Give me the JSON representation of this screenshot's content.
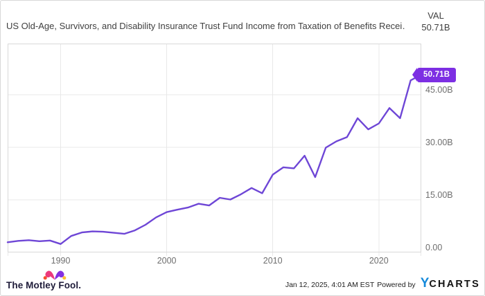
{
  "header": {
    "title": "US Old-Age, Survivors, and Disability Insurance Trust Fund Income from Taxation of Benefits Recei…",
    "val_label": "VAL",
    "val_value": "50.71B"
  },
  "chart_data": {
    "type": "line",
    "title": "US Old-Age, Survivors, and Disability Insurance Trust Fund Income from Taxation of Benefits Received",
    "units": "USD billions",
    "x": [
      1985,
      1986,
      1987,
      1988,
      1989,
      1990,
      1991,
      1992,
      1993,
      1994,
      1995,
      1996,
      1997,
      1998,
      1999,
      2000,
      2001,
      2002,
      2003,
      2004,
      2005,
      2006,
      2007,
      2008,
      2009,
      2010,
      2011,
      2012,
      2013,
      2014,
      2015,
      2016,
      2017,
      2018,
      2019,
      2020,
      2021,
      2022,
      2023,
      2024
    ],
    "values": [
      2.9,
      3.3,
      3.5,
      3.2,
      3.4,
      2.4,
      4.7,
      5.7,
      6.0,
      5.9,
      5.6,
      5.3,
      6.3,
      7.9,
      10.0,
      11.5,
      12.2,
      12.8,
      13.9,
      13.4,
      15.6,
      15.1,
      16.6,
      18.4,
      16.9,
      22.2,
      24.3,
      24.0,
      27.6,
      21.5,
      29.9,
      31.7,
      32.9,
      38.3,
      35.1,
      36.8,
      41.2,
      38.3,
      49.1,
      50.71
    ],
    "x_ticks": [
      {
        "value": 1990,
        "label": "1990"
      },
      {
        "value": 2000,
        "label": "2000"
      },
      {
        "value": 2010,
        "label": "2010"
      },
      {
        "value": 2020,
        "label": "2020"
      }
    ],
    "y_ticks": [
      {
        "value": 0,
        "label": "0.00"
      },
      {
        "value": 15,
        "label": "15.00B"
      },
      {
        "value": 30,
        "label": "30.00B"
      },
      {
        "value": 45,
        "label": "45.00B"
      }
    ],
    "xlim": [
      1985,
      2024
    ],
    "ylim": [
      0,
      59.6
    ],
    "grid": true,
    "legend": "none",
    "line_color": "#6e46d6",
    "end_label": {
      "text": "50.71B",
      "value": 50.71,
      "bg": "#7d2fe3"
    }
  },
  "footer": {
    "brand": "The Motley Fool.",
    "timestamp": "Jan 12, 2025, 4:01 AM EST",
    "powered_by": "Powered by",
    "ycharts_y": "Y",
    "ycharts_rest": "CHARTS"
  }
}
